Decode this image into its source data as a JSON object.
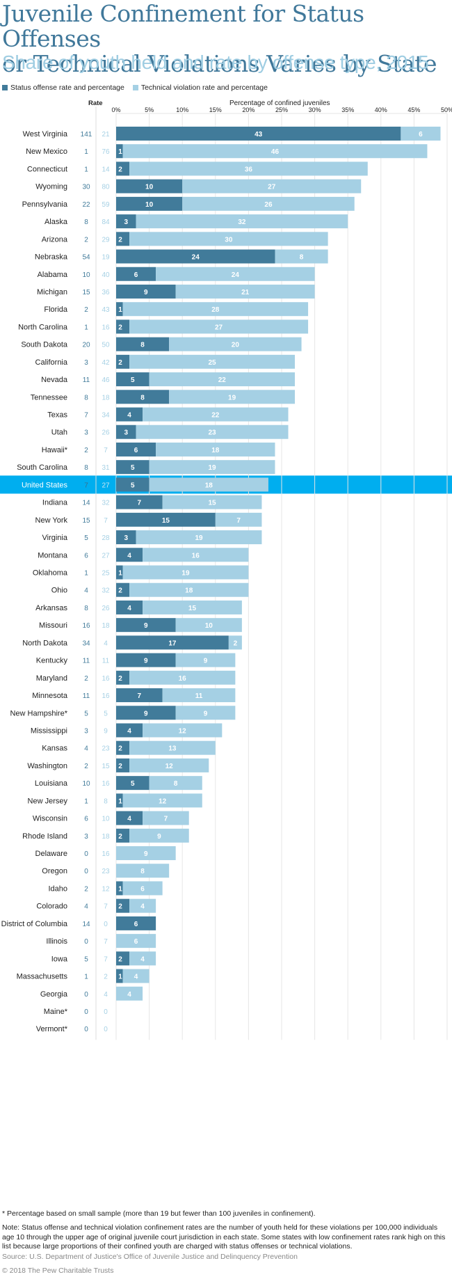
{
  "header": {
    "title_line1": "Juvenile Confinement for Status Offenses",
    "title_line2": "or Technical Violations Varies by State",
    "subtitle": "Share of youth held and rate by offense type, 2015"
  },
  "legend": {
    "status": "Status offense rate and percentage",
    "technical": "Technical violation rate and percentage"
  },
  "colors": {
    "status": "#417b9a",
    "technical": "#a5d0e4",
    "highlight": "#00aeef",
    "grid": "#e6e6e6",
    "title": "#40789a",
    "subtitle": "#9fcde2"
  },
  "footer": {
    "asterisk_note": "* Percentage based on small sample (more than 19 but fewer than 100 juveniles in confinement).",
    "note": "Note: Status offense and technical violation confinement rates are the number of youth held for these violations per 100,000 individuals age 10 through the upper age of original juvenile court jurisdiction in each state. Some states with low confinement rates rank high on this list because large proportions of their confined youth are charged with status offenses or technical violations.",
    "source": "Source: U.S. Department of Justice's Office of Juvenile Justice and Delinquency Prevention",
    "copyright": "© 2018 The Pew Charitable Trusts"
  },
  "chart_data": {
    "type": "bar",
    "orientation": "horizontal",
    "stacked": true,
    "title": "Juvenile Confinement for Status Offenses or Technical Violations Varies by State",
    "subtitle": "Share of youth held and rate by offense type, 2015",
    "xlabel": "Percentage of confined juveniles",
    "rate_header": "Rate",
    "xlim": [
      0,
      50
    ],
    "xticks": [
      "0%",
      "5%",
      "10%",
      "15%",
      "20%",
      "25%",
      "30%",
      "35%",
      "40%",
      "45%",
      "50%"
    ],
    "grid": true,
    "legend_position": "top-left",
    "highlight": "United States",
    "categories": [
      "West Virginia",
      "New Mexico",
      "Connecticut",
      "Wyoming",
      "Pennsylvania",
      "Alaska",
      "Arizona",
      "Nebraska",
      "Alabama",
      "Michigan",
      "Florida",
      "North Carolina",
      "South Dakota",
      "California",
      "Nevada",
      "Tennessee",
      "Texas",
      "Utah",
      "Hawaii*",
      "South Carolina",
      "United States",
      "Indiana",
      "New York",
      "Virginia",
      "Montana",
      "Oklahoma",
      "Ohio",
      "Arkansas",
      "Missouri",
      "North Dakota",
      "Kentucky",
      "Maryland",
      "Minnesota",
      "New Hampshire*",
      "Mississippi",
      "Kansas",
      "Washington",
      "Louisiana",
      "New Jersey",
      "Wisconsin",
      "Rhode Island",
      "Delaware",
      "Oregon",
      "Idaho",
      "Colorado",
      "District of Columbia",
      "Illinois",
      "Iowa",
      "Massachusetts",
      "Georgia",
      "Maine*",
      "Vermont*"
    ],
    "series": [
      {
        "name": "Status offense percentage",
        "values": [
          43,
          1,
          2,
          10,
          10,
          3,
          2,
          24,
          6,
          9,
          1,
          2,
          8,
          2,
          5,
          8,
          4,
          3,
          6,
          5,
          5,
          7,
          15,
          3,
          4,
          1,
          2,
          4,
          9,
          17,
          9,
          2,
          7,
          9,
          4,
          2,
          2,
          5,
          1,
          4,
          2,
          0,
          0,
          1,
          2,
          6,
          0,
          2,
          1,
          0,
          0,
          0
        ]
      },
      {
        "name": "Technical violation percentage",
        "values": [
          6,
          46,
          36,
          27,
          26,
          32,
          30,
          8,
          24,
          21,
          28,
          27,
          20,
          25,
          22,
          19,
          22,
          23,
          18,
          19,
          18,
          15,
          7,
          19,
          16,
          19,
          18,
          15,
          10,
          2,
          9,
          16,
          11,
          9,
          12,
          13,
          12,
          8,
          12,
          7,
          9,
          9,
          8,
          6,
          4,
          0,
          6,
          4,
          4,
          4,
          0,
          0
        ]
      },
      {
        "name": "Status offense rate",
        "values": [
          141,
          1,
          1,
          30,
          22,
          8,
          2,
          54,
          10,
          15,
          2,
          1,
          20,
          3,
          11,
          8,
          7,
          3,
          2,
          8,
          7,
          14,
          15,
          5,
          6,
          1,
          4,
          8,
          16,
          34,
          11,
          2,
          11,
          5,
          3,
          4,
          2,
          10,
          1,
          6,
          3,
          0,
          0,
          2,
          4,
          14,
          0,
          5,
          1,
          0,
          0,
          0
        ]
      },
      {
        "name": "Technical violation rate",
        "values": [
          21,
          76,
          14,
          80,
          59,
          84,
          29,
          19,
          40,
          36,
          43,
          16,
          50,
          42,
          46,
          18,
          34,
          26,
          7,
          31,
          27,
          32,
          7,
          28,
          27,
          25,
          32,
          26,
          18,
          4,
          11,
          16,
          16,
          5,
          9,
          23,
          15,
          16,
          8,
          10,
          18,
          16,
          23,
          12,
          7,
          0,
          7,
          7,
          2,
          4,
          0,
          0
        ]
      }
    ]
  }
}
